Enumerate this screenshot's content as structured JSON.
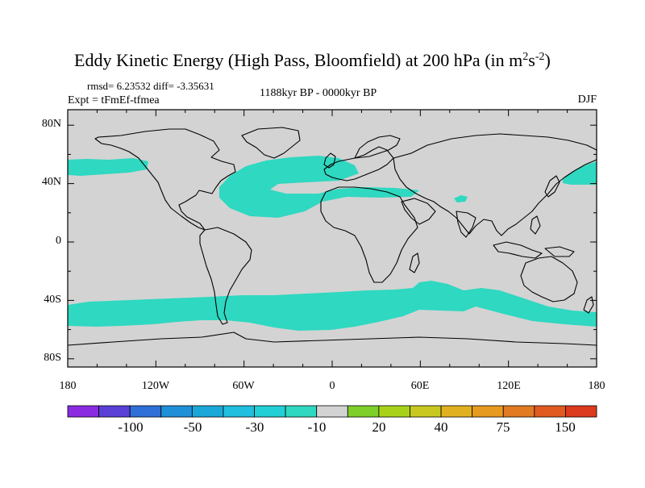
{
  "figure": {
    "title_main": "Eddy Kinetic Energy (High Pass, Bloomfield) at 200 hPa (in m",
    "title_sup1": "2",
    "title_mid": "s",
    "title_sup2": "-2",
    "title_close": ")",
    "stats": "rmsd= 6.23532 diff= -3.35631",
    "experiment": "Expt = tFmEf-tfmea",
    "period": "1188kyr BP - 0000kyr BP",
    "season": "DJF"
  },
  "axes": {
    "lat_labels": [
      "80N",
      "40N",
      "0",
      "40S",
      "80S"
    ],
    "lat_values": [
      80,
      40,
      0,
      -40,
      -80
    ],
    "lon_labels": [
      "180",
      "120W",
      "60W",
      "0",
      "60E",
      "120E",
      "180"
    ],
    "lon_values": [
      -180,
      -120,
      -60,
      0,
      60,
      120,
      180
    ]
  },
  "colorbar": {
    "labels": [
      "-100",
      "-50",
      "-30",
      "-10",
      "20",
      "40",
      "75",
      "150"
    ],
    "colors": [
      "#8a2be2",
      "#5a3fd6",
      "#2e6fd8",
      "#1e90d8",
      "#1aa7d8",
      "#20bedf",
      "#22cfd6",
      "#2fd8c0",
      "#d3d3d3",
      "#7ecf2a",
      "#a8d21a",
      "#c8c820",
      "#e0b020",
      "#e79a20",
      "#e27a22",
      "#e05a20",
      "#dc3a1c"
    ]
  },
  "map_data": {
    "background_value_color": "#d3d3d3",
    "anomaly_color": "#2fd8c0",
    "anomaly_bin": "-10 to -30 (m2 s-2)",
    "regions": [
      "North Pacific east of dateline",
      "North Atlantic storm track",
      "Mediterranean",
      "East Asia / NW Pacific",
      "Southern Ocean storm track"
    ]
  }
}
